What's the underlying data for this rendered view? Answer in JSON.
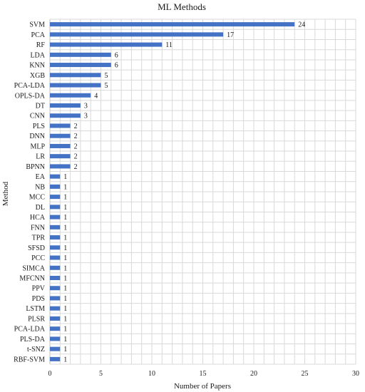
{
  "chart_data": {
    "type": "bar",
    "orientation": "horizontal",
    "title": "ML Methods",
    "xlabel": "Number of Papers",
    "ylabel": "Method",
    "xlim": [
      0,
      30
    ],
    "xticks": [
      0,
      5,
      10,
      15,
      20,
      25,
      30
    ],
    "grid": true,
    "data_labels": true,
    "bar_color": "#4472C4",
    "categories": [
      "SVM",
      "PCA",
      "RF",
      "LDA",
      "KNN",
      "XGB",
      "PCA-LDA",
      "OPLS-DA",
      "DT",
      "CNN",
      "PLS",
      "DNN",
      "MLP",
      "LR",
      "BPNN",
      "EA",
      "NB",
      "MCC",
      "DL",
      "HCA",
      "FNN",
      "TPR",
      "SFSD",
      "PCC",
      "SIMCA",
      "MFCNN",
      "PPV",
      "PDS",
      "LSTM",
      "PLSR",
      "PCA-LDA",
      "PLS-DA",
      "t-SNZ",
      "RBF-SVM"
    ],
    "values": [
      24,
      17,
      11,
      6,
      6,
      5,
      5,
      4,
      3,
      3,
      2,
      2,
      2,
      2,
      2,
      1,
      1,
      1,
      1,
      1,
      1,
      1,
      1,
      1,
      1,
      1,
      1,
      1,
      1,
      1,
      1,
      1,
      1,
      1
    ]
  }
}
